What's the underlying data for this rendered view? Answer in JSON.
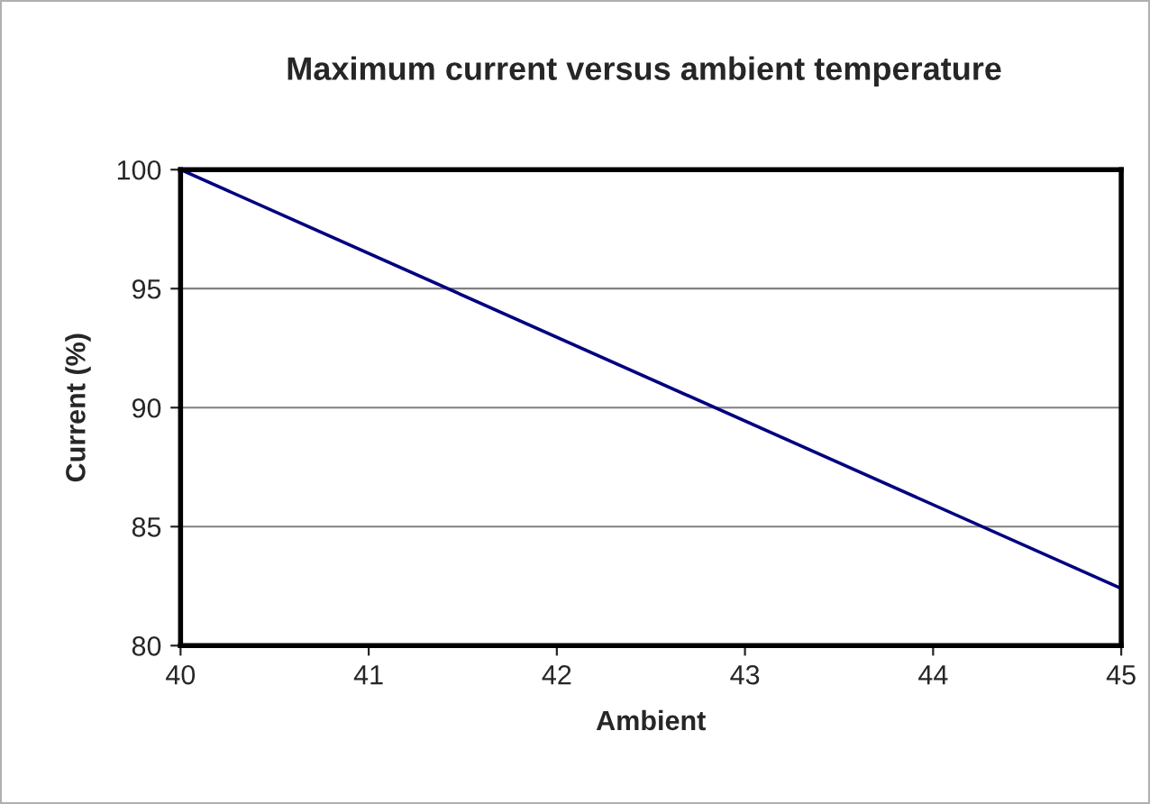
{
  "chart_data": {
    "type": "line",
    "title": "Maximum current versus ambient temperature",
    "xlabel": "Ambient",
    "ylabel": "Current (%)",
    "x": [
      40,
      45
    ],
    "series": [
      {
        "color": "#000080",
        "values": [
          100,
          82.4
        ]
      }
    ],
    "xlim": [
      40,
      45
    ],
    "xticks": [
      40,
      41,
      42,
      43,
      44,
      45
    ],
    "ylim": [
      80,
      100
    ],
    "yticks": [
      80,
      85,
      90,
      95,
      100
    ],
    "grid": "y",
    "marker": "none",
    "line_style": "solid",
    "legend": false
  }
}
